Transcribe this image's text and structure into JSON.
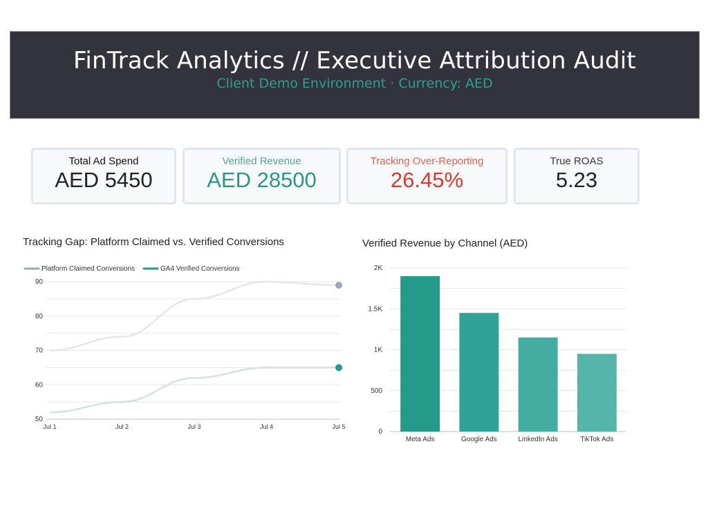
{
  "header": {
    "title": "FinTrack Analytics // Executive Attribution Audit",
    "subtitle": "Client Demo Environment · Currency: AED"
  },
  "kpis": [
    {
      "label": "Total Ad Spend",
      "value": "AED 5450",
      "label_color": "#111111",
      "value_color": "#222222"
    },
    {
      "label": "Verified Revenue",
      "value": "AED 28500",
      "label_color": "#4aa89a",
      "value_color": "#2a9688"
    },
    {
      "label": "Tracking Over-Reporting",
      "value": "26.45%",
      "label_color": "#e06055",
      "value_color": "#d63b30"
    },
    {
      "label": "True ROAS",
      "value": "5.23",
      "label_color": "#333333",
      "value_color": "#222222"
    }
  ],
  "chart_data": [
    {
      "type": "line",
      "title": "Tracking Gap: Platform Claimed vs. Verified Conversions",
      "xlabel": "",
      "ylabel": "",
      "x": [
        "Jul 1",
        "Jul 2",
        "Jul 3",
        "Jul 4",
        "Jul 5"
      ],
      "series": [
        {
          "name": "Platform Claimed Conversions",
          "values": [
            70,
            74,
            85,
            90,
            89
          ],
          "color": "#e4e6ea",
          "legend_color": "#9aa7bd",
          "marker_color": "#9aa7bd"
        },
        {
          "name": "GA4 Verified Conversions",
          "values": [
            52,
            55,
            62,
            65,
            65
          ],
          "color": "#d3e2dd",
          "legend_color": "#249a8b",
          "marker_color": "#249a8b"
        }
      ],
      "yticks": [
        "50",
        "60",
        "70",
        "80",
        "90"
      ],
      "ylim": [
        50,
        90
      ],
      "grid": true,
      "legend": "top-left"
    },
    {
      "type": "bar",
      "title": "Verified Revenue by Channel (AED)",
      "xlabel": "",
      "ylabel": "",
      "categories": [
        "Meta Ads",
        "Google Ads",
        "LinkedIn Ads",
        "TikTok Ads"
      ],
      "values": [
        1900,
        1450,
        1150,
        950
      ],
      "colors": [
        "#249a8b",
        "#31a396",
        "#44aca0",
        "#56b5aa"
      ],
      "yticks": [
        "0",
        "500",
        "1K",
        "1.5K",
        "2K"
      ],
      "ylim": [
        0,
        2000
      ],
      "grid": true
    }
  ]
}
